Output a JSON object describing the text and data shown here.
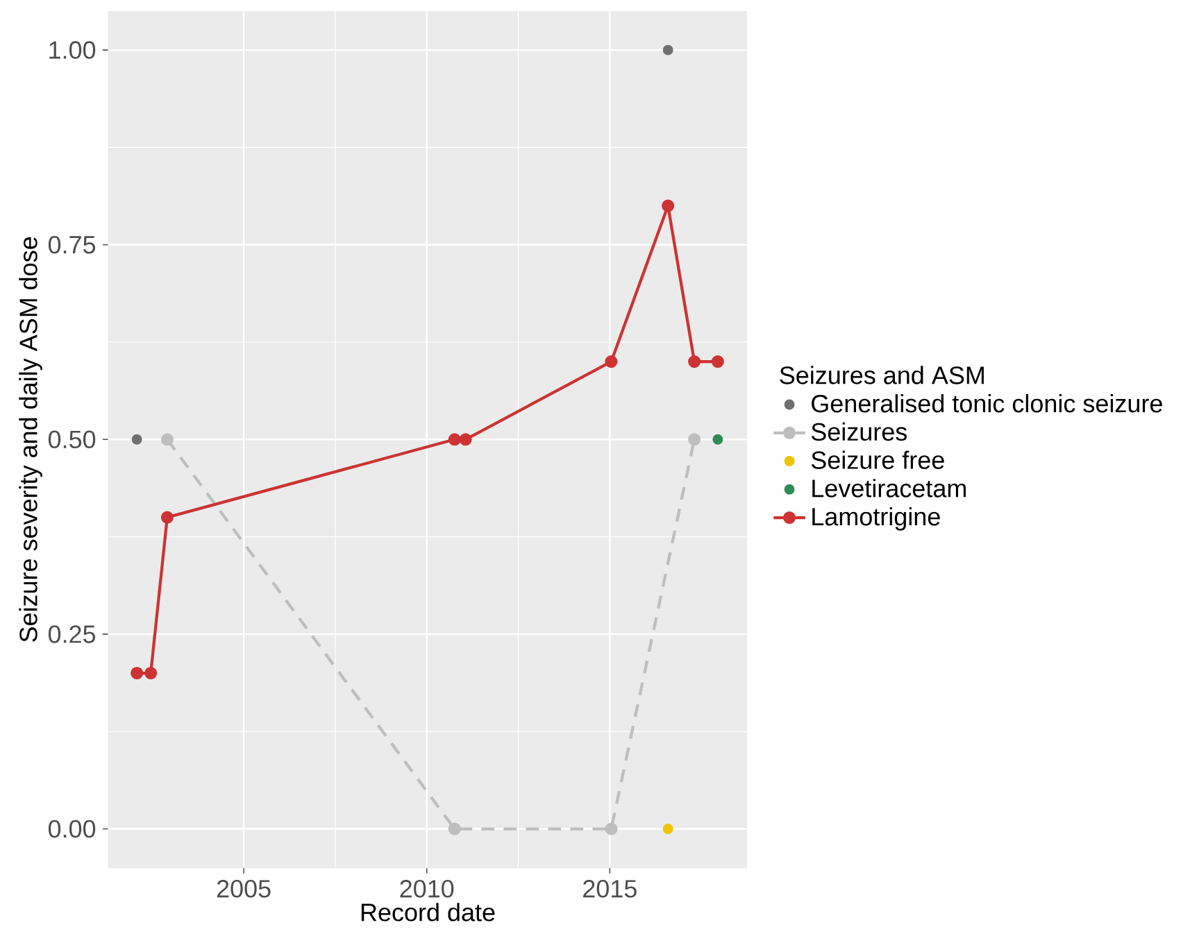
{
  "chart_data": {
    "type": "line",
    "xlabel": "Record date",
    "ylabel": "Seizure severity and daily ASM dose",
    "legend_title": "Seizures and ASM",
    "xlim": [
      2001.3,
      2018.75
    ],
    "xticks": [
      2005,
      2010,
      2015
    ],
    "ylim": [
      -0.05,
      1.05
    ],
    "yticks": [
      {
        "value": 0,
        "label": "0.00"
      },
      {
        "value": 0.25,
        "label": "0.25"
      },
      {
        "value": 0.5,
        "label": "0.50"
      },
      {
        "value": 0.75,
        "label": "0.75"
      },
      {
        "value": 1,
        "label": "1.00"
      }
    ],
    "grid": true,
    "legend": "right",
    "marker": "circle",
    "series": [
      {
        "name": "Generalised tonic clonic seizure",
        "type": "scatter",
        "color": "#707070",
        "x": [
          2002.08,
          2016.59
        ],
        "values": [
          0.5,
          1.0
        ]
      },
      {
        "name": "Seizures",
        "line_style": "dashed",
        "color": "#bebebe",
        "x": [
          2002.91,
          2010.76,
          2015.04,
          2017.31
        ],
        "values": [
          0.5,
          0.0,
          0.0,
          0.5
        ]
      },
      {
        "name": "Seizure free",
        "type": "scatter",
        "color": "#f0c400",
        "x": [
          2016.59
        ],
        "values": [
          0.0
        ]
      },
      {
        "name": "Levetiracetam",
        "type": "scatter",
        "color": "#2e8b57",
        "x": [
          2017.95
        ],
        "values": [
          0.5
        ]
      },
      {
        "name": "Lamotrigine",
        "line_style": "solid",
        "color": "#cc3333",
        "x": [
          2002.08,
          2002.46,
          2002.91,
          2010.76,
          2011.06,
          2015.04,
          2016.59,
          2017.31,
          2017.95
        ],
        "values": [
          0.2,
          0.2,
          0.4,
          0.5,
          0.5,
          0.6,
          0.8,
          0.6,
          0.6
        ]
      }
    ]
  }
}
